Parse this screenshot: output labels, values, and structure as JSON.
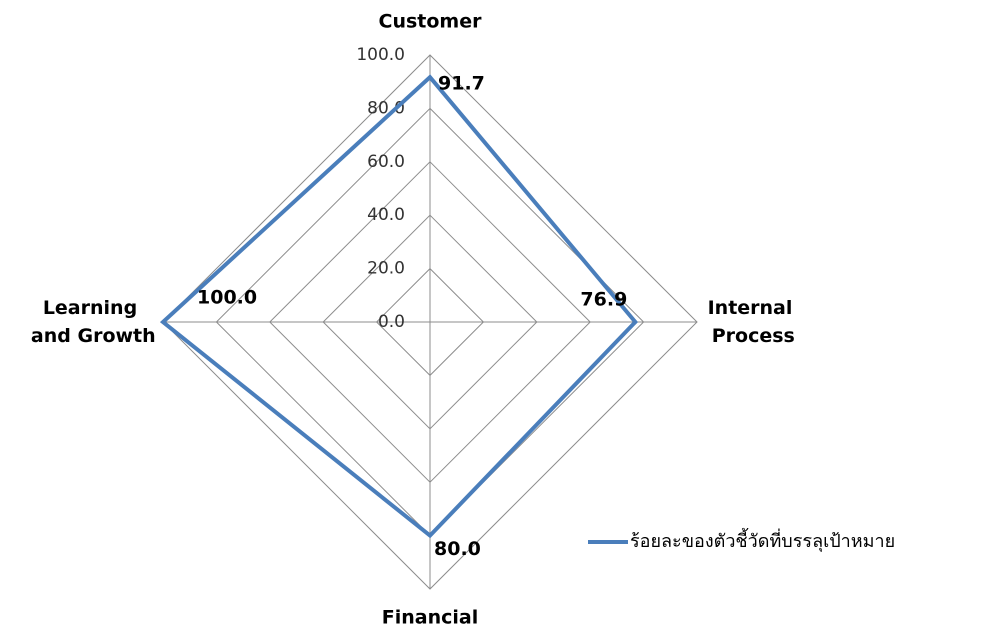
{
  "chart_data": {
    "type": "radar",
    "categories": [
      "Customer",
      "Internal Process",
      "Financial",
      "Learning and Growth"
    ],
    "series": [
      {
        "name": "ร้อยละของตัวชี้วัดที่บรรลุเป้าหมาย",
        "color": "#4a7ebb",
        "values": [
          91.7,
          76.9,
          80.0,
          100.0
        ],
        "value_labels": [
          "91.7",
          "76.9",
          "80.0",
          "100.0"
        ]
      }
    ],
    "ylim": [
      0,
      100
    ],
    "yticks": [
      {
        "value": 0,
        "label": "0.0"
      },
      {
        "value": 20,
        "label": "20.0"
      },
      {
        "value": 40,
        "label": "40.0"
      },
      {
        "value": 60,
        "label": "60.0"
      },
      {
        "value": 80,
        "label": "80.0"
      },
      {
        "value": 100,
        "label": "100.0"
      }
    ],
    "grid": true,
    "legend": "bottom-right"
  }
}
